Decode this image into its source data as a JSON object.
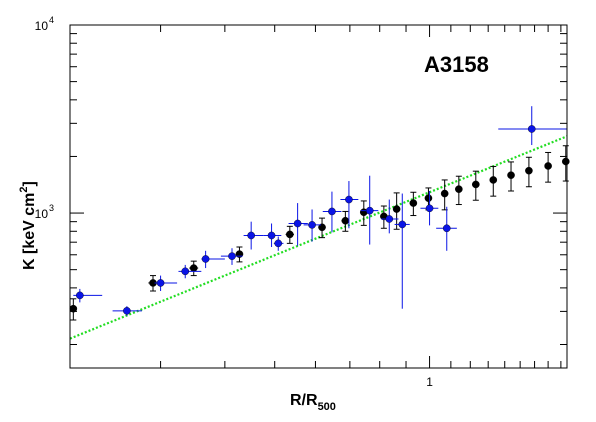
{
  "chart_data": {
    "type": "scatter",
    "title": "",
    "annotation": "A3158",
    "xlabel": {
      "main": "R/R",
      "sub": "500"
    },
    "ylabel": {
      "main": "K [keV cm",
      "sup": "2",
      "end": "]"
    },
    "x_scale": "log",
    "y_scale": "log",
    "xlim": [
      0.2,
      1.85
    ],
    "ylim": [
      150,
      10000
    ],
    "x_tick_labels": [
      {
        "value": 1,
        "label": "1"
      }
    ],
    "y_tick_labels": [
      {
        "value": 1000,
        "base": "10",
        "exp": "3"
      },
      {
        "value": 10000,
        "base": "10",
        "exp": "4"
      }
    ],
    "grid": false,
    "legend": "none",
    "colors": {
      "black_series": "#000000",
      "blue_series": "#0a14e6",
      "fit_line": "#22dd22"
    },
    "fit_line": {
      "x": [
        0.2,
        1.85
      ],
      "y": [
        215,
        2560
      ],
      "style": "dotted"
    },
    "series": [
      {
        "color": "black",
        "points": [
          {
            "x": 0.203,
            "y": 310,
            "xerr": [
              0.0,
              0.0
            ],
            "yerr": [
              40,
              40
            ]
          },
          {
            "x": 0.29,
            "y": 425,
            "xerr": [
              0.006,
              0.006
            ],
            "yerr": [
              40,
              40
            ]
          },
          {
            "x": 0.348,
            "y": 510,
            "xerr": [
              0.007,
              0.007
            ],
            "yerr": [
              45,
              45
            ]
          },
          {
            "x": 0.427,
            "y": 605,
            "xerr": [
              0.007,
              0.007
            ],
            "yerr": [
              55,
              55
            ]
          },
          {
            "x": 0.535,
            "y": 770,
            "xerr": [
              0.01,
              0.01
            ],
            "yerr": [
              80,
              80
            ]
          },
          {
            "x": 0.618,
            "y": 840,
            "xerr": [
              0.01,
              0.01
            ],
            "yerr": [
              100,
              100
            ]
          },
          {
            "x": 0.686,
            "y": 910,
            "xerr": [
              0.012,
              0.012
            ],
            "yerr": [
              110,
              110
            ]
          },
          {
            "x": 0.745,
            "y": 1010,
            "xerr": [
              0.012,
              0.012
            ],
            "yerr": [
              150,
              150
            ]
          },
          {
            "x": 0.815,
            "y": 960,
            "xerr": [
              0.012,
              0.012
            ],
            "yerr": [
              130,
              130
            ]
          },
          {
            "x": 0.863,
            "y": 1050,
            "xerr": [
              0.012,
              0.012
            ],
            "yerr": [
              230,
              230
            ]
          },
          {
            "x": 0.93,
            "y": 1130,
            "xerr": [
              0.015,
              0.015
            ],
            "yerr": [
              160,
              160
            ]
          },
          {
            "x": 0.995,
            "y": 1200,
            "xerr": [
              0.015,
              0.015
            ],
            "yerr": [
              160,
              160
            ]
          },
          {
            "x": 1.07,
            "y": 1270,
            "xerr": [
              0.015,
              0.015
            ],
            "yerr": [
              230,
              230
            ]
          },
          {
            "x": 1.14,
            "y": 1340,
            "xerr": [
              0.018,
              0.018
            ],
            "yerr": [
              230,
              230
            ]
          },
          {
            "x": 1.23,
            "y": 1420,
            "xerr": [
              0.02,
              0.02
            ],
            "yerr": [
              250,
              250
            ]
          },
          {
            "x": 1.33,
            "y": 1500,
            "xerr": [
              0.02,
              0.02
            ],
            "yerr": [
              270,
              270
            ]
          },
          {
            "x": 1.44,
            "y": 1590,
            "xerr": [
              0.02,
              0.02
            ],
            "yerr": [
              280,
              280
            ]
          },
          {
            "x": 1.56,
            "y": 1680,
            "xerr": [
              0.02,
              0.02
            ],
            "yerr": [
              300,
              300
            ]
          },
          {
            "x": 1.7,
            "y": 1780,
            "xerr": [
              0.02,
              0.02
            ],
            "yerr": [
              320,
              320
            ]
          },
          {
            "x": 1.84,
            "y": 1880,
            "xerr": [
              0.02,
              0.02
            ],
            "yerr": [
              400,
              400
            ]
          }
        ]
      },
      {
        "color": "blue",
        "points": [
          {
            "x": 0.209,
            "y": 365,
            "xerr": [
              0.006,
              0.022
            ],
            "yerr": [
              30,
              30
            ]
          },
          {
            "x": 0.258,
            "y": 302,
            "xerr": [
              0.016,
              0.018
            ],
            "yerr": [
              18,
              18
            ]
          },
          {
            "x": 0.3,
            "y": 425,
            "xerr": [
              0.008,
              0.023
            ],
            "yerr": [
              40,
              40
            ]
          },
          {
            "x": 0.335,
            "y": 490,
            "xerr": [
              0.01,
              0.025
            ],
            "yerr": [
              40,
              40
            ]
          },
          {
            "x": 0.367,
            "y": 570,
            "xerr": [
              0.007,
              0.033
            ],
            "yerr": [
              60,
              60
            ]
          },
          {
            "x": 0.413,
            "y": 590,
            "xerr": [
              0.02,
              0.02
            ],
            "yerr": [
              60,
              60
            ]
          },
          {
            "x": 0.45,
            "y": 760,
            "xerr": [
              0.015,
              0.025
            ],
            "yerr": [
              120,
              140
            ]
          },
          {
            "x": 0.493,
            "y": 760,
            "xerr": [
              0.018,
              0.022
            ],
            "yerr": [
              100,
              120
            ]
          },
          {
            "x": 0.508,
            "y": 690,
            "xerr": [
              0.01,
              0.012
            ],
            "yerr": [
              60,
              60
            ]
          },
          {
            "x": 0.554,
            "y": 880,
            "xerr": [
              0.022,
              0.026
            ],
            "yerr": [
              210,
              250
            ]
          },
          {
            "x": 0.591,
            "y": 865,
            "xerr": [
              0.022,
              0.024
            ],
            "yerr": [
              160,
              180
            ]
          },
          {
            "x": 0.646,
            "y": 1020,
            "xerr": [
              0.026,
              0.028
            ],
            "yerr": [
              230,
              280
            ]
          },
          {
            "x": 0.697,
            "y": 1180,
            "xerr": [
              0.026,
              0.03
            ],
            "yerr": [
              350,
              300
            ]
          },
          {
            "x": 0.765,
            "y": 1030,
            "xerr": [
              0.03,
              0.03
            ],
            "yerr": [
              350,
              550
            ]
          },
          {
            "x": 0.835,
            "y": 930,
            "xerr": [
              0.03,
              0.035
            ],
            "yerr": [
              150,
              250
            ]
          },
          {
            "x": 0.885,
            "y": 870,
            "xerr": [
              0.03,
              0.03
            ],
            "yerr": [
              560,
              400
            ]
          },
          {
            "x": 1.0,
            "y": 1060,
            "xerr": [
              0.04,
              0.04
            ],
            "yerr": [
              200,
              250
            ]
          },
          {
            "x": 1.08,
            "y": 830,
            "xerr": [
              0.05,
              0.05
            ],
            "yerr": [
              200,
              250
            ]
          },
          {
            "x": 1.58,
            "y": 2800,
            "xerr": [
              0.22,
              0.27
            ],
            "yerr": [
              500,
              900
            ]
          }
        ]
      }
    ]
  }
}
